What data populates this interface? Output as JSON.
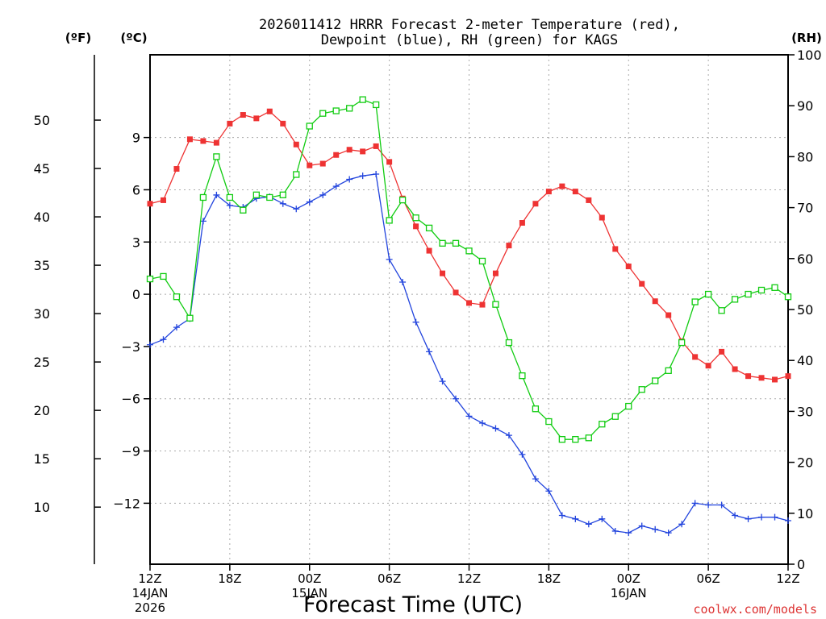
{
  "chart_data": {
    "type": "line",
    "title_line1": "2026011412 HRRR Forecast 2-meter Temperature (red),",
    "title_line2": "Dewpoint (blue), RH (green) for KAGS",
    "unit_f": "(ºF)",
    "unit_c": "(ºC)",
    "unit_rh": "(RH)",
    "xlabel": "Forecast Time (UTC)",
    "credit": "coolwx.com/models",
    "x_range": [
      0,
      48
    ],
    "c_range": [
      -15.5,
      13.75
    ],
    "rh_range": [
      0,
      100
    ],
    "f_ticks": [
      10,
      15,
      20,
      25,
      30,
      35,
      40,
      45,
      50
    ],
    "c_ticks": [
      -12,
      -9,
      -6,
      -3,
      0,
      3,
      6,
      9
    ],
    "c_tick_labels": [
      "−12",
      "−9",
      "−6",
      "−3",
      "0",
      "3",
      "6",
      "9"
    ],
    "rh_ticks": [
      0,
      10,
      20,
      30,
      40,
      50,
      60,
      70,
      80,
      90,
      100
    ],
    "x_ticks": [
      {
        "h": 0,
        "label": "12Z",
        "sub1": "14JAN",
        "sub2": "2026"
      },
      {
        "h": 6,
        "label": "18Z"
      },
      {
        "h": 12,
        "label": "00Z",
        "sub1": "15JAN"
      },
      {
        "h": 18,
        "label": "06Z"
      },
      {
        "h": 24,
        "label": "12Z"
      },
      {
        "h": 30,
        "label": "18Z"
      },
      {
        "h": 36,
        "label": "00Z",
        "sub1": "16JAN"
      },
      {
        "h": 42,
        "label": "06Z"
      },
      {
        "h": 48,
        "label": "12Z"
      }
    ],
    "colors": {
      "temperature": "#ee3333",
      "dewpoint": "#2244dd",
      "rh": "#11cc11"
    },
    "series": [
      {
        "name": "Temperature (°C)",
        "key": "temperature",
        "axis": "c",
        "marker": "filled-square",
        "values": [
          5.2,
          5.4,
          7.2,
          8.9,
          8.8,
          8.7,
          9.8,
          10.3,
          10.1,
          10.5,
          9.8,
          8.6,
          7.4,
          7.5,
          8.0,
          8.3,
          8.2,
          8.5,
          7.6,
          5.5,
          3.9,
          2.5,
          1.2,
          0.1,
          -0.5,
          -0.6,
          1.2,
          2.8,
          4.1,
          5.2,
          5.9,
          6.2,
          5.9,
          5.4,
          4.4,
          2.6,
          1.6,
          0.6,
          -0.4,
          -1.2,
          -2.7,
          -3.6,
          -4.1,
          -3.3,
          -4.3,
          -4.7,
          -4.8,
          -4.9,
          -4.7
        ]
      },
      {
        "name": "Dewpoint (°C)",
        "key": "dewpoint",
        "axis": "c",
        "marker": "plus",
        "values": [
          -2.9,
          -2.6,
          -1.9,
          -1.4,
          4.2,
          5.7,
          5.1,
          5.0,
          5.5,
          5.6,
          5.2,
          4.9,
          5.3,
          5.7,
          6.2,
          6.6,
          6.8,
          6.9,
          2.0,
          0.7,
          -1.6,
          -3.3,
          -5.0,
          -6.0,
          -7.0,
          -7.4,
          -7.7,
          -8.1,
          -9.2,
          -10.6,
          -11.3,
          -12.7,
          -12.9,
          -13.2,
          -12.9,
          -13.6,
          -13.7,
          -13.3,
          -13.5,
          -13.7,
          -13.2,
          -12.0,
          -12.1,
          -12.1,
          -12.7,
          -12.9,
          -12.8,
          -12.8,
          -13.0
        ]
      },
      {
        "name": "RH (%)",
        "key": "rh",
        "axis": "rh",
        "marker": "open-square",
        "values": [
          56,
          56.5,
          52.5,
          48.3,
          72,
          80,
          72,
          69.5,
          72.5,
          72,
          72.5,
          76.5,
          86,
          88.5,
          89,
          89.5,
          91.2,
          90.2,
          67.5,
          71.5,
          68,
          66,
          63,
          63,
          61.5,
          59.5,
          51,
          43.5,
          37,
          30.5,
          28,
          24.5,
          24.5,
          24.8,
          27.5,
          29,
          31,
          34.3,
          36,
          38,
          43.5,
          51.5,
          53,
          49.8,
          52,
          53,
          53.8,
          54.3,
          52.5
        ]
      }
    ]
  }
}
